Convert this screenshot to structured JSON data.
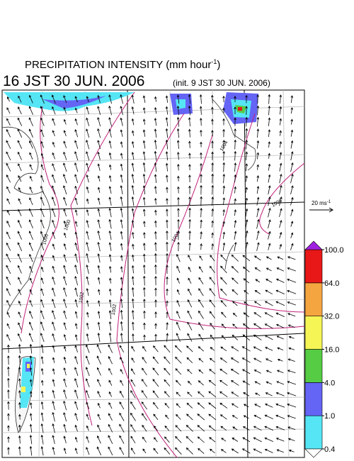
{
  "header": {
    "title": "PRECIPITATION INTENSITY (mm hour",
    "title_sup": "-1",
    "title_end": ")",
    "valid_time": "16 JST 30 JUN. 2006",
    "init_time": "(init. 9 JST 30 JUN. 2006)"
  },
  "scale": {
    "label": "20 ms",
    "label_sup": "-1"
  },
  "colorbar": {
    "levels": [
      0.4,
      {
        "value": 1,
        "label": "1.0"
      },
      {
        "value": 4,
        "label": "4.0"
      },
      {
        "value": 16,
        "label": "16.0"
      },
      {
        "value": 32,
        "label": "32.0"
      },
      {
        "value": 64,
        "label": "64.0"
      },
      {
        "value": 100,
        "label": "100.0"
      }
    ],
    "colors": [
      "#55e5f5",
      "#6464f5",
      "#55cc44",
      "#f5f555",
      "#f5a540",
      "#e81818"
    ],
    "over_color": "#a020e0",
    "under_color": "#ffffff"
  },
  "isobar_labels": [
    "1004",
    "1006",
    "1000",
    "1006",
    "1002",
    "1002",
    "1004"
  ]
}
